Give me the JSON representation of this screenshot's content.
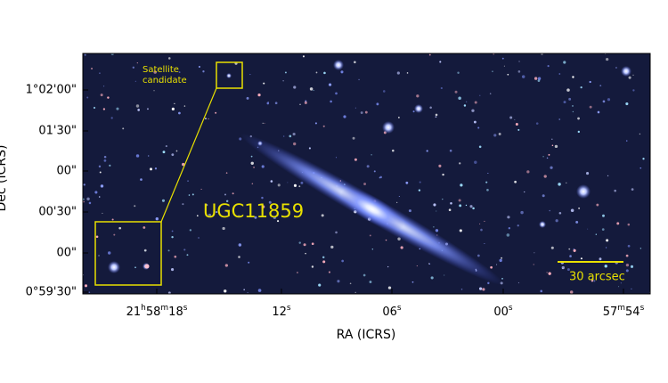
{
  "figure": {
    "x_axis": {
      "label": "RA (ICRS)",
      "ticks": [
        "21h58m18s",
        "12s",
        "06s",
        "00s",
        "57m54s"
      ]
    },
    "y_axis": {
      "label": "Dec (ICRS)",
      "ticks": [
        "1°02'00\"",
        "01'30\"",
        "00\"",
        "00'30\"",
        "00\"",
        "0°59'30\""
      ]
    },
    "annotations": {
      "galaxy": "UGC11859",
      "satellite": "Satellite candidate",
      "scale_bar": "30 arcsec"
    }
  }
}
